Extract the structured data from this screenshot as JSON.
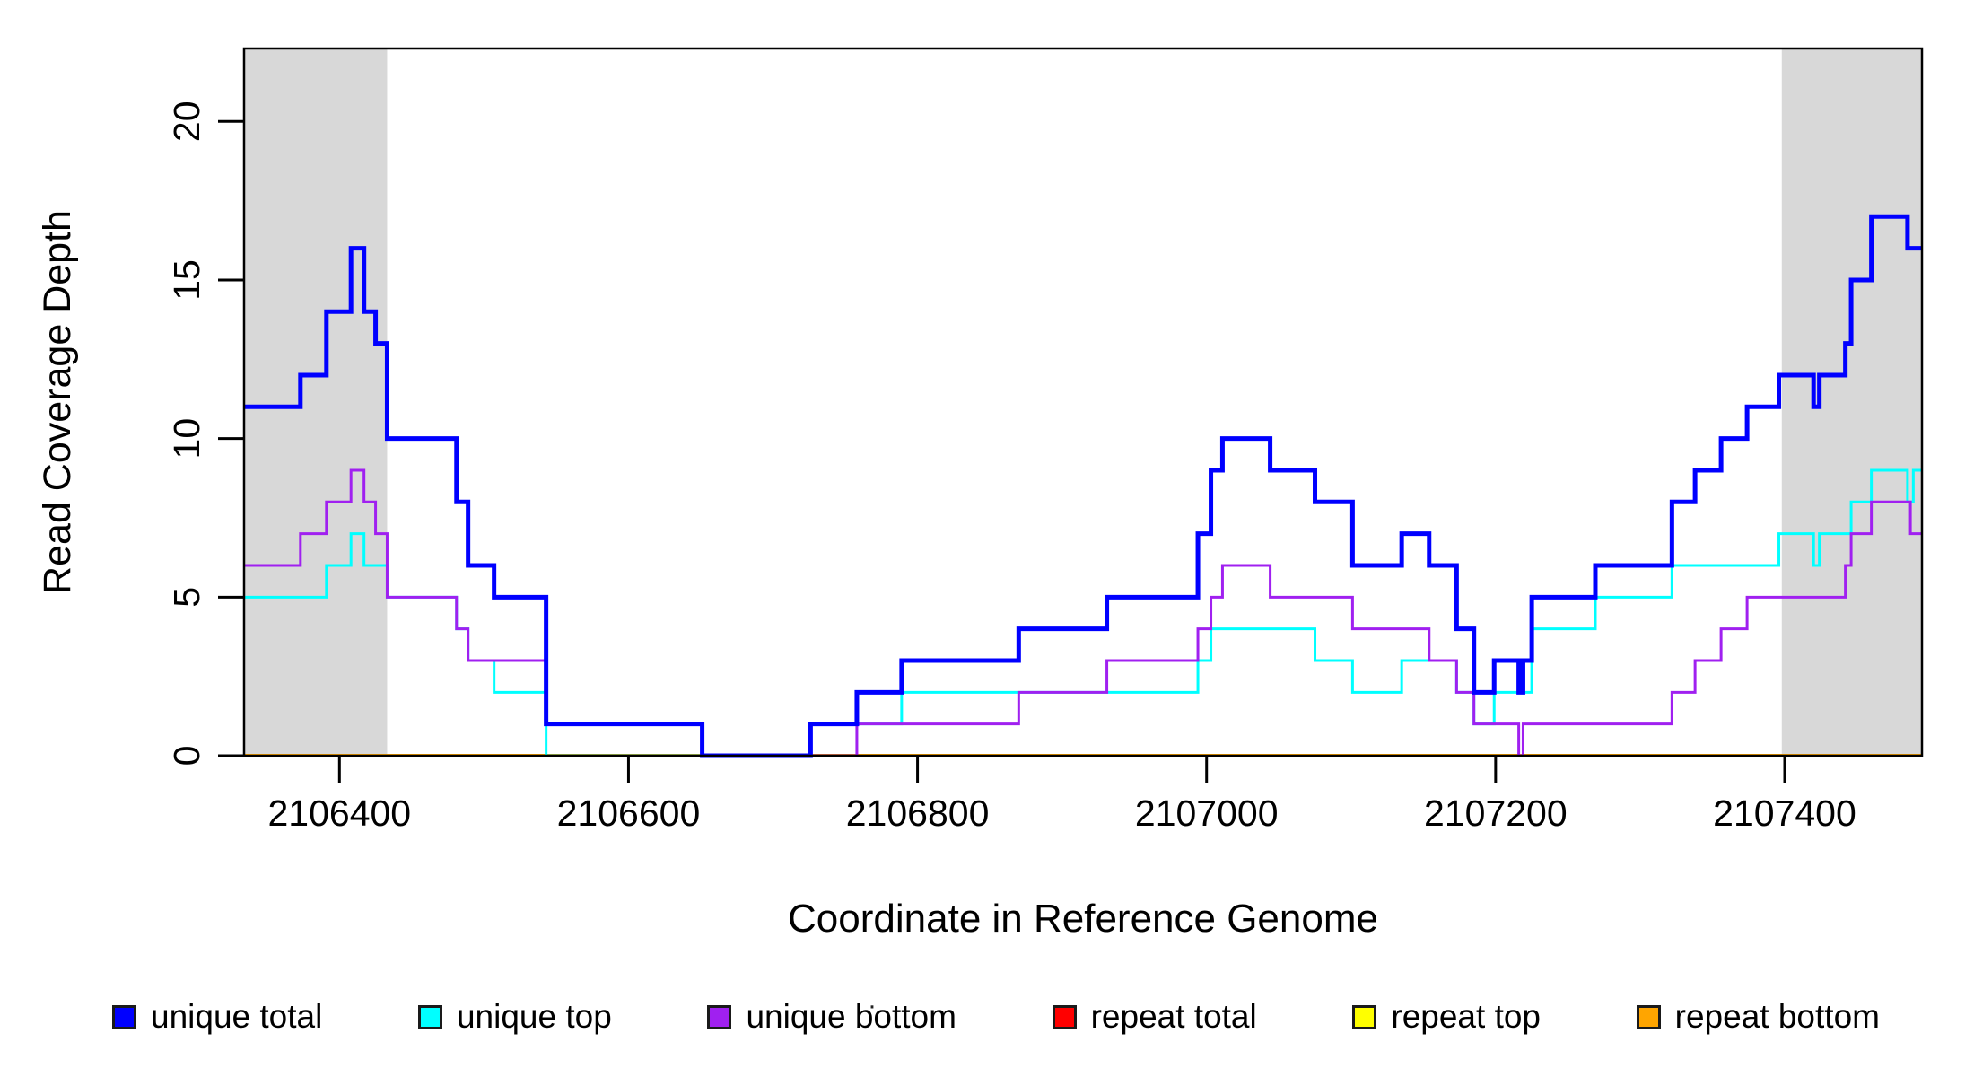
{
  "chart_data": {
    "type": "line",
    "subtype": "step-coverage-plot",
    "xlabel": "Coordinate in Reference Genome",
    "ylabel": "Read Coverage Depth",
    "x_range": [
      2106334,
      2107495
    ],
    "y_range": [
      0,
      22.3
    ],
    "grid": false,
    "legend_position": "bottom",
    "x_ticks": [
      {
        "value": 2106400,
        "label": "2106400"
      },
      {
        "value": 2106600,
        "label": "2106600"
      },
      {
        "value": 2106800,
        "label": "2106800"
      },
      {
        "value": 2107000,
        "label": "2107000"
      },
      {
        "value": 2107200,
        "label": "2107200"
      },
      {
        "value": 2107400,
        "label": "2107400"
      }
    ],
    "y_ticks": [
      {
        "value": 0,
        "label": "0"
      },
      {
        "value": 5,
        "label": "5"
      },
      {
        "value": 10,
        "label": "10"
      },
      {
        "value": 15,
        "label": "15"
      },
      {
        "value": 20,
        "label": "20"
      }
    ],
    "shaded_regions": [
      {
        "x_start": 2106334,
        "x_end": 2106433,
        "color": "#d8d8d8"
      },
      {
        "x_start": 2107398,
        "x_end": 2107495,
        "color": "#d8d8d8"
      }
    ],
    "series": [
      {
        "name": "unique total",
        "color": "#0000ff",
        "width": 5,
        "steps": [
          [
            2106334,
            11
          ],
          [
            2106373,
            12
          ],
          [
            2106391,
            14
          ],
          [
            2106408,
            16
          ],
          [
            2106417,
            14
          ],
          [
            2106425,
            13
          ],
          [
            2106433,
            10
          ],
          [
            2106481,
            8
          ],
          [
            2106489,
            6
          ],
          [
            2106507,
            5
          ],
          [
            2106543,
            1
          ],
          [
            2106651,
            0
          ],
          [
            2106726,
            1
          ],
          [
            2106758,
            2
          ],
          [
            2106789,
            3
          ],
          [
            2106870,
            4
          ],
          [
            2106931,
            5
          ],
          [
            2106994,
            7
          ],
          [
            2107003,
            9
          ],
          [
            2107011,
            10
          ],
          [
            2107044,
            9
          ],
          [
            2107075,
            8
          ],
          [
            2107101,
            6
          ],
          [
            2107135,
            7
          ],
          [
            2107154,
            6
          ],
          [
            2107173,
            4
          ],
          [
            2107185,
            2
          ],
          [
            2107199,
            3
          ],
          [
            2107216,
            2
          ],
          [
            2107219,
            3
          ],
          [
            2107225,
            5
          ],
          [
            2107269,
            6
          ],
          [
            2107322,
            8
          ],
          [
            2107338,
            9
          ],
          [
            2107356,
            10
          ],
          [
            2107374,
            11
          ],
          [
            2107396,
            12
          ],
          [
            2107420,
            11
          ],
          [
            2107424,
            12
          ],
          [
            2107442,
            13
          ],
          [
            2107446,
            15
          ],
          [
            2107460,
            17
          ],
          [
            2107485,
            16
          ]
        ]
      },
      {
        "name": "unique top",
        "color": "#00ffff",
        "width": 3,
        "steps": [
          [
            2106334,
            5
          ],
          [
            2106391,
            6
          ],
          [
            2106408,
            7
          ],
          [
            2106417,
            6
          ],
          [
            2106433,
            5
          ],
          [
            2106481,
            4
          ],
          [
            2106489,
            3
          ],
          [
            2106507,
            2
          ],
          [
            2106543,
            0
          ],
          [
            2106726,
            1
          ],
          [
            2106789,
            2
          ],
          [
            2106994,
            3
          ],
          [
            2107003,
            4
          ],
          [
            2107075,
            3
          ],
          [
            2107101,
            2
          ],
          [
            2107135,
            3
          ],
          [
            2107173,
            2
          ],
          [
            2107185,
            1
          ],
          [
            2107199,
            2
          ],
          [
            2107225,
            4
          ],
          [
            2107269,
            5
          ],
          [
            2107322,
            6
          ],
          [
            2107396,
            7
          ],
          [
            2107420,
            6
          ],
          [
            2107424,
            7
          ],
          [
            2107446,
            8
          ],
          [
            2107460,
            9
          ],
          [
            2107485,
            8
          ],
          [
            2107489,
            9
          ]
        ]
      },
      {
        "name": "unique bottom",
        "color": "#a020f0",
        "width": 3,
        "steps": [
          [
            2106334,
            6
          ],
          [
            2106373,
            7
          ],
          [
            2106391,
            8
          ],
          [
            2106408,
            9
          ],
          [
            2106417,
            8
          ],
          [
            2106425,
            7
          ],
          [
            2106433,
            5
          ],
          [
            2106481,
            4
          ],
          [
            2106489,
            3
          ],
          [
            2106543,
            1
          ],
          [
            2106651,
            0
          ],
          [
            2106758,
            1
          ],
          [
            2106870,
            2
          ],
          [
            2106931,
            3
          ],
          [
            2106994,
            4
          ],
          [
            2107003,
            5
          ],
          [
            2107011,
            6
          ],
          [
            2107044,
            5
          ],
          [
            2107101,
            4
          ],
          [
            2107154,
            3
          ],
          [
            2107173,
            2
          ],
          [
            2107185,
            1
          ],
          [
            2107216,
            0
          ],
          [
            2107219,
            1
          ],
          [
            2107322,
            2
          ],
          [
            2107338,
            3
          ],
          [
            2107356,
            4
          ],
          [
            2107374,
            5
          ],
          [
            2107442,
            6
          ],
          [
            2107446,
            7
          ],
          [
            2107460,
            8
          ],
          [
            2107487,
            7
          ]
        ]
      },
      {
        "name": "repeat total",
        "color": "#ff0000",
        "width": 3,
        "steps": [
          [
            2106334,
            0
          ]
        ]
      },
      {
        "name": "repeat top",
        "color": "#ffff00",
        "width": 3,
        "steps": [
          [
            2106334,
            0
          ]
        ]
      },
      {
        "name": "repeat bottom",
        "color": "#ffa500",
        "width": 4,
        "steps": [
          [
            2106334,
            0
          ]
        ]
      }
    ],
    "draw_order": [
      3,
      4,
      5,
      1,
      2,
      0
    ]
  },
  "legend": {
    "stray_dot": "·"
  },
  "layout_note_colors": {
    "axis": "#000000",
    "background": "#ffffff",
    "shading": "#d8d8d8"
  }
}
